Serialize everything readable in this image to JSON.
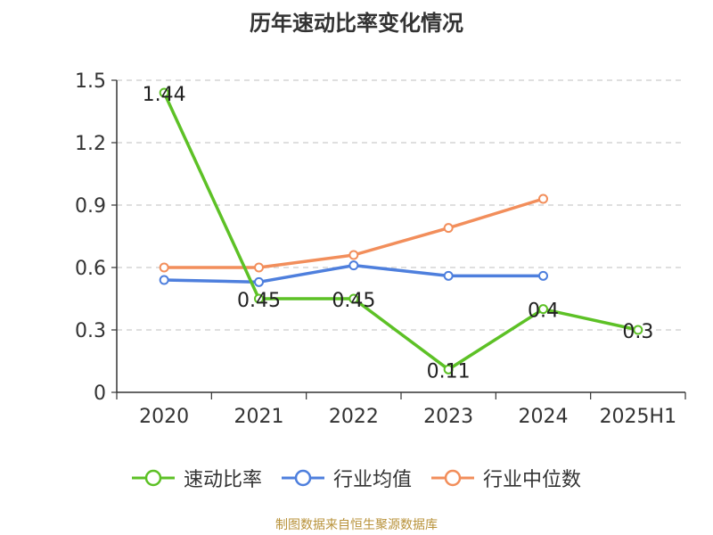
{
  "title": "历年速动比率变化情况",
  "footer": "制图数据来自恒生聚源数据库",
  "chart_data": {
    "type": "line",
    "title": "历年速动比率变化情况",
    "categories": [
      "2020",
      "2021",
      "2022",
      "2023",
      "2024",
      "2025H1"
    ],
    "ylim": [
      0,
      1.5
    ],
    "yticks": [
      "0",
      "0.3",
      "0.6",
      "0.9",
      "1.2",
      "1.5"
    ],
    "grid": true,
    "legend_position": "bottom",
    "series": [
      {
        "name": "速动比率",
        "color": "#5dc126",
        "values": [
          1.44,
          0.45,
          0.45,
          0.11,
          0.4,
          0.3
        ],
        "labels": [
          "1.44",
          "0.45",
          "0.45",
          "0.11",
          "0.4",
          "0.3"
        ]
      },
      {
        "name": "行业均值",
        "color": "#4e7fdd",
        "values": [
          0.54,
          0.53,
          0.61,
          0.56,
          0.56,
          null
        ]
      },
      {
        "name": "行业中位数",
        "color": "#f28e5b",
        "values": [
          0.6,
          0.6,
          0.66,
          0.79,
          0.93,
          null
        ]
      }
    ]
  }
}
